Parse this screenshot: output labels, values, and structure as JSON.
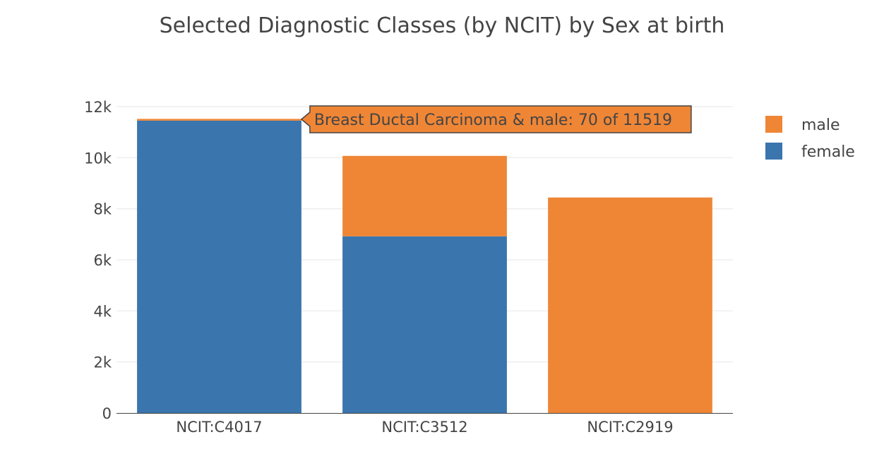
{
  "chart_data": {
    "type": "bar",
    "stacked": true,
    "title": "Selected Diagnostic Classes (by NCIT) by Sex at birth",
    "xlabel": "",
    "ylabel": "",
    "categories": [
      "NCIT:C4017",
      "NCIT:C3512",
      "NCIT:C2919"
    ],
    "series": [
      {
        "name": "female",
        "color": "#3a75ae",
        "values": [
          11449,
          6920,
          0
        ]
      },
      {
        "name": "male",
        "color": "#ef8636",
        "values": [
          70,
          3150,
          8440
        ]
      }
    ],
    "ylim": [
      0,
      12000
    ],
    "yticks": [
      0,
      2000,
      4000,
      6000,
      8000,
      10000,
      12000
    ],
    "ytick_labels": [
      "0",
      "2k",
      "4k",
      "6k",
      "8k",
      "10k",
      "12k"
    ],
    "grid": true,
    "legend": {
      "placement": "top-right",
      "entries": [
        "male",
        "female"
      ]
    },
    "tooltip": {
      "text": "Breast Ductal Carcinoma & male: 70 of 11519",
      "category": "NCIT:C4017",
      "series": "male"
    }
  }
}
